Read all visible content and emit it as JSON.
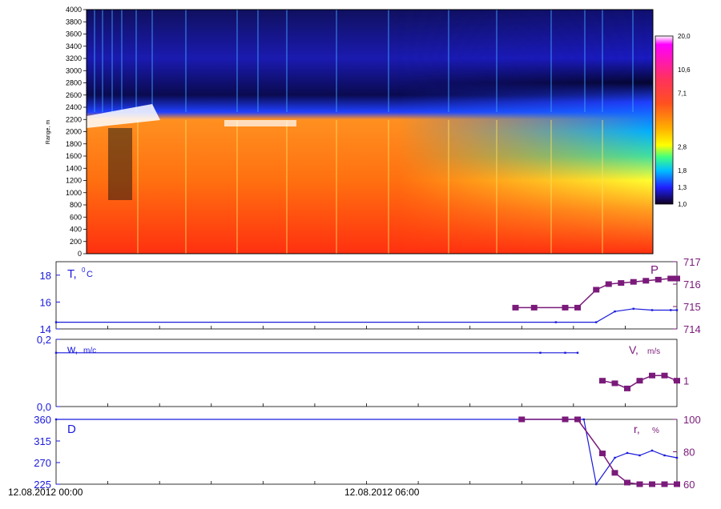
{
  "colors": {
    "blue": "#1a1adc",
    "purple": "#7a1a7a",
    "black": "#000000"
  },
  "heatmap": {
    "ylabel": "Range, m",
    "yticks": [
      0,
      200,
      400,
      600,
      800,
      1000,
      1200,
      1400,
      1600,
      1800,
      2000,
      2200,
      2400,
      2600,
      2800,
      3000,
      3200,
      3400,
      3600,
      3800,
      4000
    ],
    "colorbar_labels": [
      "20,0",
      "10,6",
      "7,1",
      "2,8",
      "1,8",
      "1,3",
      "1,0"
    ],
    "colorbar_positions": [
      20.0,
      10.6,
      7.1,
      2.8,
      1.8,
      1.3,
      1.0
    ]
  },
  "panel_T": {
    "left_label": "T,",
    "left_sup": "0",
    "left_unit": "C",
    "right_label": "P",
    "left_ticks": [
      "14",
      "16",
      "18"
    ],
    "right_ticks": [
      "714",
      "715",
      "716",
      "717"
    ]
  },
  "panel_W": {
    "left_label": "w,",
    "left_unit": "m/c",
    "right_label": "V,",
    "right_unit": "m/s",
    "left_ticks": [
      "0,0",
      "0,2"
    ],
    "right_ticks": [
      "1"
    ]
  },
  "panel_D": {
    "left_label": "D",
    "right_label": "r,",
    "right_unit": "%",
    "left_ticks": [
      "225",
      "270",
      "315",
      "360"
    ],
    "right_ticks": [
      "60",
      "80",
      "100"
    ]
  },
  "time_labels": [
    "12.08.2012 00:00",
    "12.08.2012 06:00"
  ],
  "chart_data": [
    {
      "type": "heatmap",
      "ylabel": "Range, m",
      "ylim": [
        0,
        4000
      ],
      "colorbar": [
        20.0,
        10.6,
        7.1,
        2.8,
        1.8,
        1.3,
        1.0
      ]
    },
    {
      "type": "line",
      "series": [
        {
          "name": "T, 0C",
          "axis": "left",
          "x": [
            0,
            0.805,
            0.87,
            0.9,
            0.93,
            0.96,
            0.99,
            1.0
          ],
          "values": [
            14.5,
            14.5,
            14.5,
            15.3,
            15.5,
            15.4,
            15.4,
            15.4
          ]
        },
        {
          "name": "P",
          "axis": "right",
          "x": [
            0.74,
            0.77,
            0.82,
            0.84,
            0.87,
            0.89,
            0.91,
            0.93,
            0.95,
            0.97,
            0.99,
            1.0
          ],
          "values": [
            714.95,
            714.95,
            714.95,
            714.95,
            715.75,
            716.0,
            716.05,
            716.1,
            716.15,
            716.2,
            716.25,
            716.25
          ]
        }
      ],
      "ylim_left": [
        14,
        19
      ],
      "ylim_right": [
        714,
        717
      ]
    },
    {
      "type": "line",
      "series": [
        {
          "name": "w, m/c",
          "axis": "left",
          "x": [
            0,
            0.78,
            0.82,
            0.84
          ],
          "values": [
            0.16,
            0.16,
            0.16,
            0.16
          ]
        },
        {
          "name": "V, m/s",
          "axis": "right",
          "x": [
            0.88,
            0.9,
            0.92,
            0.94,
            0.96,
            0.98,
            1.0
          ],
          "values": [
            1.0,
            0.95,
            0.85,
            1.0,
            1.1,
            1.1,
            1.0
          ]
        }
      ],
      "ylim_left": [
        0,
        0.2
      ]
    },
    {
      "type": "line",
      "series": [
        {
          "name": "D",
          "axis": "left",
          "x": [
            0,
            0.75,
            0.82,
            0.84,
            0.85,
            0.87,
            0.9,
            0.92,
            0.94,
            0.96,
            0.98,
            1.0
          ],
          "values": [
            360,
            360,
            360,
            360,
            360,
            225,
            280,
            290,
            285,
            295,
            285,
            280
          ]
        },
        {
          "name": "r, %",
          "axis": "right",
          "x": [
            0.75,
            0.82,
            0.84,
            0.88,
            0.9,
            0.92,
            0.94,
            0.96,
            0.98,
            1.0
          ],
          "values": [
            100,
            100,
            100,
            79,
            67,
            61,
            60,
            60,
            60,
            60
          ]
        }
      ],
      "ylim_left": [
        225,
        360
      ],
      "ylim_right": [
        60,
        100
      ]
    }
  ]
}
